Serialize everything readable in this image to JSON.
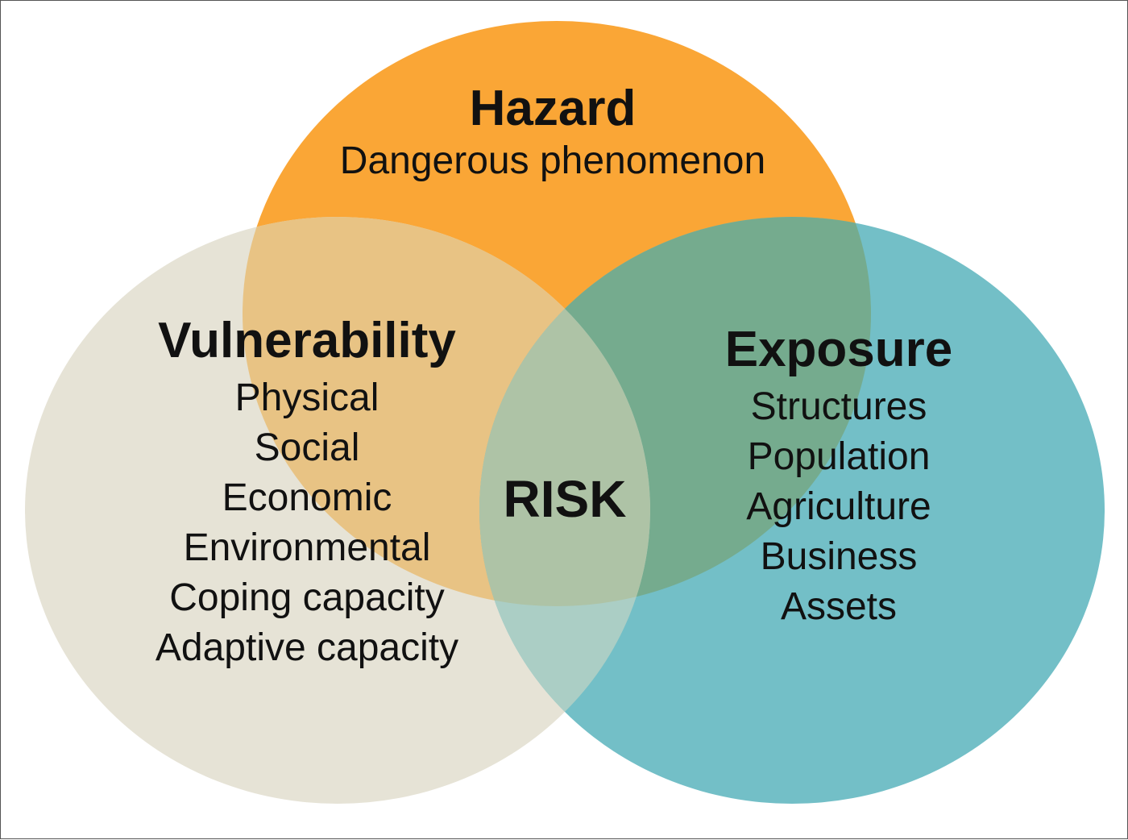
{
  "colors": {
    "hazard": "#FAA636",
    "vulnerability": "#E6E3D6",
    "exposure": "#73BFC7",
    "hazard_vulnerability": "#E8C384",
    "hazard_exposure": "#75AB8E",
    "vulnerability_exposure": "#ABCEC5",
    "risk_center": "#AEC3A6"
  },
  "hazard": {
    "title": "Hazard",
    "subtitle": "Dangerous phenomenon"
  },
  "vulnerability": {
    "title": "Vulnerability",
    "items": [
      "Physical",
      "Social",
      "Economic",
      "Environmental",
      "Coping capacity",
      "Adaptive capacity"
    ]
  },
  "exposure": {
    "title": "Exposure",
    "items": [
      "Structures",
      "Population",
      "Agriculture",
      "Business",
      "Assets"
    ]
  },
  "center": {
    "label": "RISK"
  }
}
